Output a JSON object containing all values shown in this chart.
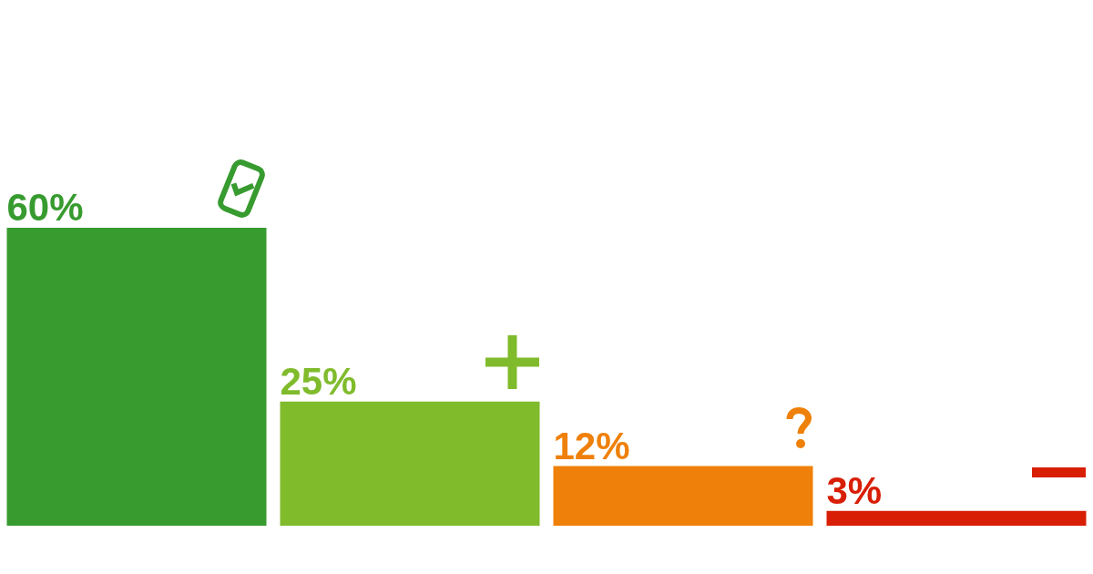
{
  "chart_data": {
    "type": "bar",
    "categories": [
      null,
      null,
      null,
      null
    ],
    "values": [
      60,
      25,
      12,
      3
    ],
    "colors": [
      "#379b2f",
      "#80bb2c",
      "#ef8009",
      "#d81e05"
    ],
    "value_labels": [
      "60%",
      "25%",
      "12%",
      "3%"
    ]
  }
}
